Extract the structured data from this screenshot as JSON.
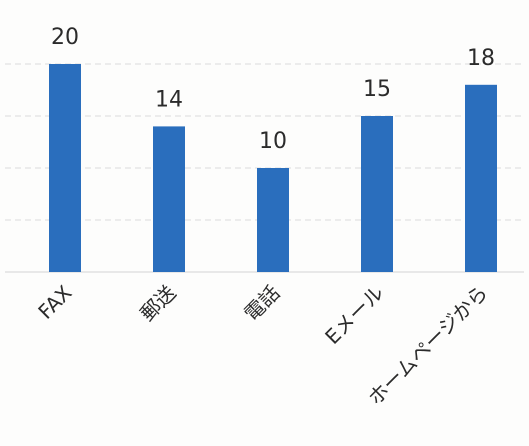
{
  "chart_data": {
    "type": "bar",
    "categories": [
      "FAX",
      "郵送",
      "電話",
      "Eメール",
      "ホームページから"
    ],
    "values": [
      20,
      14,
      10,
      15,
      18
    ],
    "data_labels": [
      "20",
      "14",
      "10",
      "15",
      "18"
    ],
    "title": "",
    "xlabel": "",
    "ylabel": "",
    "ylim": [
      0,
      20
    ],
    "grid": true,
    "legend": "none",
    "colors": {
      "bar": "#2a6ebd",
      "grid": "#dcdcdc",
      "text": "#2b2b2b"
    }
  }
}
